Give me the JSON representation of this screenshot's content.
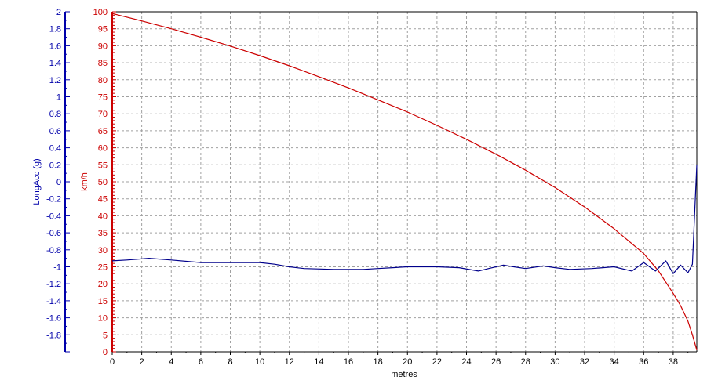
{
  "chart_data": {
    "type": "line",
    "xlabel": "metres",
    "x_ticks": [
      0,
      2,
      4,
      6,
      8,
      10,
      12,
      14,
      16,
      18,
      20,
      22,
      24,
      26,
      28,
      30,
      32,
      34,
      36,
      38
    ],
    "xlim": [
      0,
      39.6
    ],
    "axes": {
      "left_outer": {
        "label": "LongAcc (g)",
        "color": "#0000aa",
        "ylim": [
          -2,
          2
        ],
        "ticks": [
          "2",
          "1.8",
          "1.6",
          "1.4",
          "1.2",
          "1",
          "0.8",
          "0.6",
          "0.4",
          "0.2",
          "0",
          "-0.2",
          "-0.4",
          "-0.6",
          "-0.8",
          "-1",
          "-1.2",
          "-1.4",
          "-1.6",
          "-1.8"
        ]
      },
      "left_inner": {
        "label": "km/h",
        "color": "#cc0000",
        "ylim": [
          0,
          100
        ],
        "ticks": [
          "100",
          "95",
          "90",
          "85",
          "80",
          "75",
          "70",
          "65",
          "60",
          "55",
          "50",
          "45",
          "40",
          "35",
          "30",
          "25",
          "20",
          "15",
          "10",
          "5",
          "0"
        ]
      }
    },
    "grid": true,
    "series": [
      {
        "axis": "left_inner",
        "color": "#cc0000",
        "x": [
          0,
          2,
          4,
          6,
          8,
          10,
          12,
          14,
          16,
          18,
          20,
          22,
          24,
          26,
          28,
          30,
          32,
          34,
          36,
          37,
          38,
          38.5,
          39,
          39.3,
          39.6
        ],
        "y": [
          99.5,
          97.3,
          95,
          92.5,
          89.9,
          87.1,
          84.1,
          80.9,
          77.6,
          74.1,
          70.5,
          66.6,
          62.5,
          58.1,
          53.4,
          48.3,
          42.6,
          36.2,
          28.9,
          23.8,
          17.2,
          13.6,
          9.0,
          5.0,
          0.5
        ]
      },
      {
        "axis": "left_outer",
        "color": "#00008b",
        "x": [
          0,
          1,
          2.5,
          4,
          6,
          8,
          10,
          11,
          12,
          13,
          15,
          17,
          18,
          19,
          20,
          22,
          23.5,
          24.8,
          25.5,
          26.5,
          27.2,
          28,
          29.2,
          30,
          31,
          32.5,
          34,
          35.2,
          36,
          36.8,
          37.5,
          38,
          38.5,
          39,
          39.3,
          39.5,
          39.6
        ],
        "y": [
          -0.93,
          -0.92,
          -0.9,
          -0.92,
          -0.95,
          -0.95,
          -0.95,
          -0.97,
          -1.0,
          -1.02,
          -1.03,
          -1.03,
          -1.02,
          -1.01,
          -1.0,
          -1.0,
          -1.01,
          -1.05,
          -1.02,
          -0.98,
          -1.0,
          -1.02,
          -0.99,
          -1.01,
          -1.03,
          -1.02,
          -1.0,
          -1.05,
          -0.95,
          -1.05,
          -0.93,
          -1.08,
          -0.98,
          -1.07,
          -0.97,
          -0.2,
          0.2
        ]
      }
    ]
  }
}
